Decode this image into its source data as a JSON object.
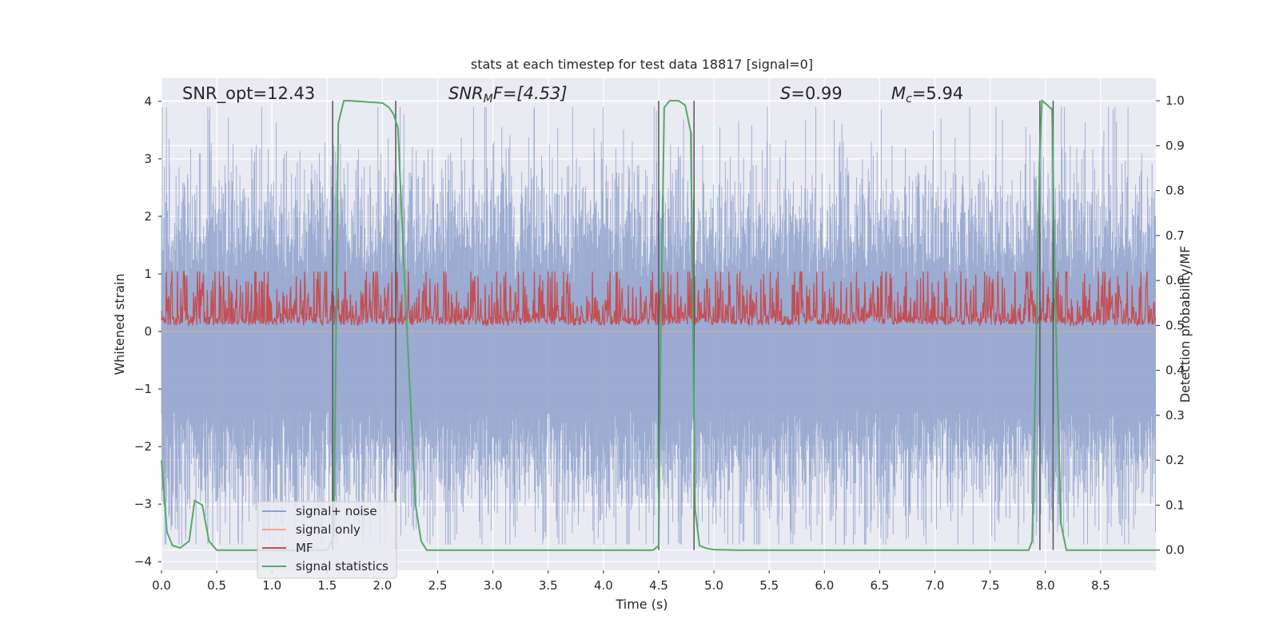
{
  "chart_data": {
    "type": "line",
    "title": "stats at each timestep for test data 18817 [signal=0]",
    "xlabel": "Time (s)",
    "ylabel": "Whitened strain",
    "y2label": "Detection probability/MF",
    "xlim": [
      0,
      9.0
    ],
    "ylim": [
      -4.15,
      4.4
    ],
    "y2lim": [
      -0.045,
      1.05
    ],
    "xticks": [
      "0.0",
      "0.5",
      "1.0",
      "1.5",
      "2.0",
      "2.5",
      "3.0",
      "3.5",
      "4.0",
      "4.5",
      "5.0",
      "5.5",
      "6.0",
      "6.5",
      "7.0",
      "7.5",
      "8.0",
      "8.5"
    ],
    "yticks": [
      "4",
      "3",
      "2",
      "1",
      "0",
      "−1",
      "−2",
      "−3",
      "−4"
    ],
    "y2ticks": [
      "1.0",
      "0.9",
      "0.8",
      "0.7",
      "0.6",
      "0.5",
      "0.4",
      "0.3",
      "0.2",
      "0.1",
      "0.0"
    ],
    "annotations": {
      "snr_opt": "SNR_opt=12.43",
      "snr_mf_main": "SNR",
      "snr_mf_sub": "M",
      "snr_mf_rest": "F=[4.53]",
      "s_italic": "S",
      "s_value": "=0.99",
      "mc_main": "M",
      "mc_sub": "c",
      "mc_value": "=5.94"
    },
    "vlines": [
      1.55,
      2.12,
      4.5,
      4.82,
      7.95,
      8.07
    ],
    "series": [
      {
        "name": "signal+ noise",
        "color": "#8da0cb",
        "kind": "noise",
        "center": -0.05,
        "sigma": 1.0
      },
      {
        "name": "signal only",
        "color": "#f0a98a",
        "kind": "flat",
        "value": 0.0
      },
      {
        "name": "MF",
        "color": "#c44e52",
        "kind": "mf",
        "base": 0.5,
        "spread": 0.08
      },
      {
        "name": "signal statistics",
        "color": "#55a868",
        "kind": "stat",
        "x": [
          0.0,
          0.05,
          0.1,
          0.17,
          0.25,
          0.3,
          0.37,
          0.43,
          0.5,
          0.55,
          1.0,
          1.5,
          1.56,
          1.6,
          1.65,
          1.7,
          2.0,
          2.06,
          2.1,
          2.14,
          2.2,
          2.3,
          2.35,
          2.4,
          2.5,
          3.0,
          3.5,
          4.0,
          4.45,
          4.5,
          4.52,
          4.55,
          4.6,
          4.68,
          4.74,
          4.79,
          4.83,
          4.87,
          4.93,
          5.0,
          5.2,
          6.0,
          7.0,
          7.85,
          7.88,
          7.92,
          7.95,
          7.97,
          8.02,
          8.06,
          8.09,
          8.14,
          8.19,
          8.3,
          8.7,
          9.0
        ],
        "y": [
          0.2,
          0.04,
          0.01,
          0.005,
          0.02,
          0.11,
          0.1,
          0.02,
          0.0,
          0.0,
          0.0,
          0.0,
          0.03,
          0.95,
          1.0,
          1.0,
          0.995,
          0.985,
          0.97,
          0.94,
          0.6,
          0.1,
          0.02,
          0.0,
          0.0,
          0.0,
          0.0,
          0.0,
          0.0,
          0.01,
          0.5,
          0.985,
          1.0,
          1.0,
          0.99,
          0.93,
          0.09,
          0.01,
          0.004,
          0.001,
          0.0,
          0.0,
          0.0,
          0.0,
          0.02,
          0.5,
          0.9,
          1.0,
          0.99,
          0.98,
          0.55,
          0.06,
          0.0,
          0.0,
          0.0,
          0.0
        ]
      }
    ],
    "legend": [
      "signal+ noise",
      "signal only",
      "MF",
      "signal statistics"
    ],
    "legend_position": "lower-left",
    "grid": true
  }
}
